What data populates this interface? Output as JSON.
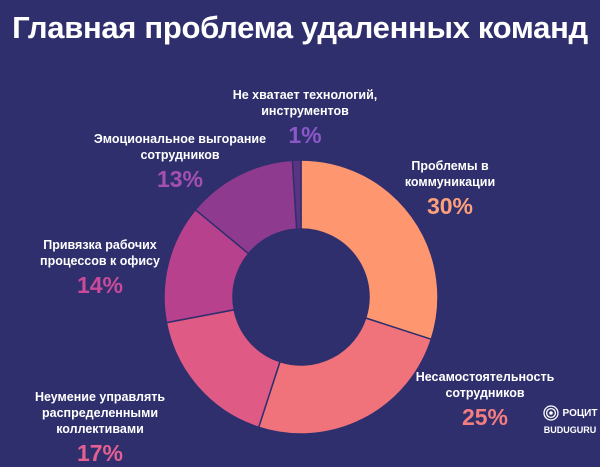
{
  "title": "Главная проблема удаленных команд",
  "chart_data": {
    "type": "pie",
    "title": "Главная проблема удаленных команд",
    "slices": [
      {
        "label": "Проблемы в\nкоммуникации",
        "value": 30,
        "pct_text": "30%",
        "color": "#fe9670",
        "text_color": "#fea07a"
      },
      {
        "label": "Несамостоятельность\nсотрудников",
        "value": 25,
        "pct_text": "25%",
        "color": "#f0737b",
        "text_color": "#f47d80"
      },
      {
        "label": "Неумение управлять\nраспределенными коллективами",
        "value": 17,
        "pct_text": "17%",
        "color": "#e05a86",
        "text_color": "#e46090"
      },
      {
        "label": "Привязка рабочих\nпроцессов к офису",
        "value": 14,
        "pct_text": "14%",
        "color": "#b8418e",
        "text_color": "#c84a98"
      },
      {
        "label": "Эмоциональное выгорание\nсотрудников",
        "value": 13,
        "pct_text": "13%",
        "color": "#8e3a8e",
        "text_color": "#a54fb0"
      },
      {
        "label": "Не хватает технологий,\nинструментов",
        "value": 1,
        "pct_text": "1%",
        "color": "#5a3382",
        "text_color": "#8c58c8"
      }
    ]
  },
  "brand": {
    "logo_text": "РОЦИТ",
    "name": "BUDUGURU",
    "icon": "spiral-logo-icon"
  }
}
